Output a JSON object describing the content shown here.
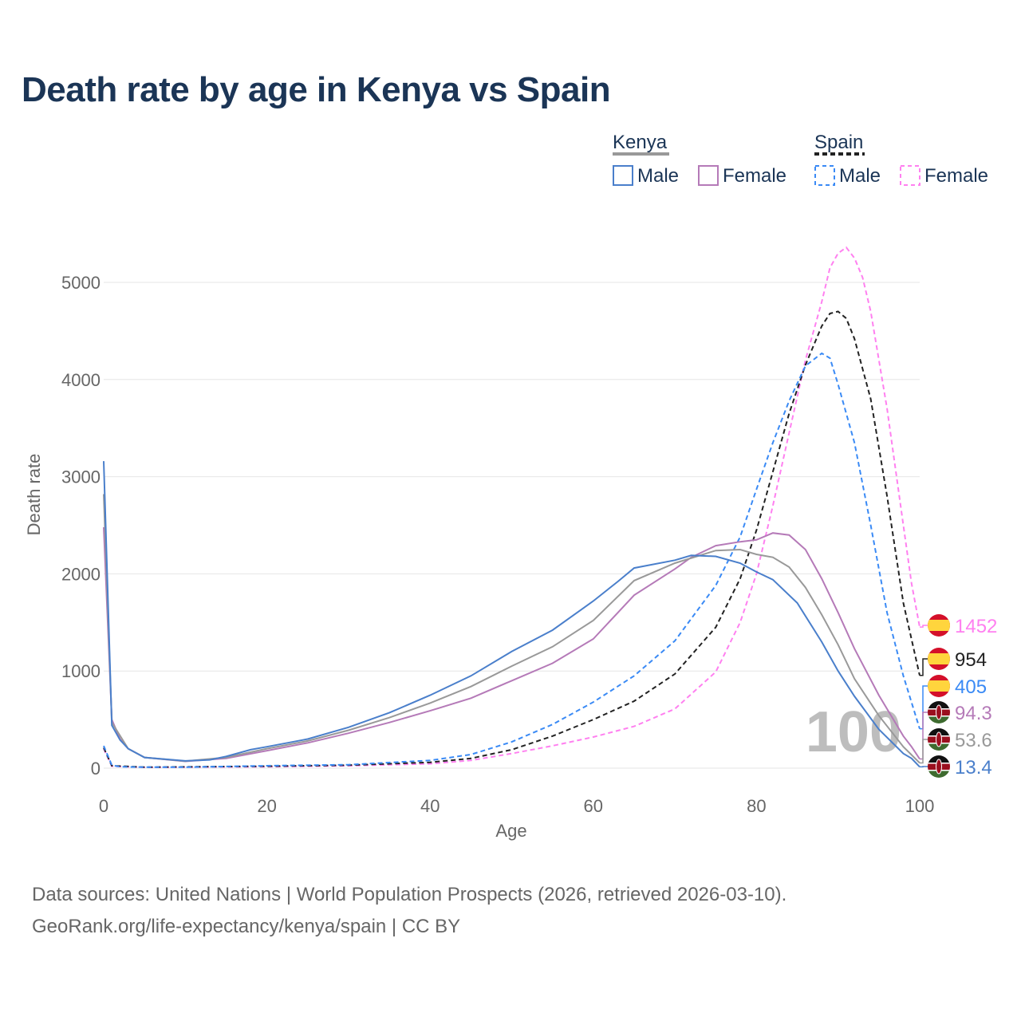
{
  "title": "Death rate by age in Kenya vs Spain",
  "legend": {
    "groups": [
      {
        "name": "Kenya",
        "items": [
          "Male",
          "Female"
        ]
      },
      {
        "name": "Spain",
        "items": [
          "Male",
          "Female"
        ]
      }
    ]
  },
  "watermark": "100",
  "source_line1": "Data sources: United Nations | World Population Prospects (2026, retrieved 2026-03-10).",
  "source_line2": "GeoRank.org/life-expectancy/kenya/spain | CC BY",
  "chart_data": {
    "type": "line",
    "title": "Death rate by age in Kenya vs Spain",
    "xlabel": "Age",
    "ylabel": "Death rate",
    "xlim": [
      0,
      100
    ],
    "ylim": [
      0,
      5000
    ],
    "xticks": [
      0,
      20,
      40,
      60,
      80,
      100
    ],
    "yticks": [
      0,
      1000,
      2000,
      3000,
      4000,
      5000
    ],
    "grid": true,
    "legend_position": "top-right",
    "series": [
      {
        "name": "Spain Female",
        "color": "#ff80f0",
        "dash": true,
        "end_label": "1452",
        "points": [
          [
            0,
            200
          ],
          [
            1,
            20
          ],
          [
            5,
            8
          ],
          [
            20,
            15
          ],
          [
            30,
            25
          ],
          [
            40,
            45
          ],
          [
            45,
            80
          ],
          [
            50,
            150
          ],
          [
            55,
            230
          ],
          [
            60,
            320
          ],
          [
            65,
            430
          ],
          [
            70,
            610
          ],
          [
            75,
            990
          ],
          [
            78,
            1500
          ],
          [
            80,
            2000
          ],
          [
            82,
            2700
          ],
          [
            84,
            3450
          ],
          [
            86,
            4200
          ],
          [
            88,
            4800
          ],
          [
            89,
            5150
          ],
          [
            90,
            5300
          ],
          [
            91,
            5360
          ],
          [
            92,
            5250
          ],
          [
            93,
            5050
          ],
          [
            94,
            4700
          ],
          [
            96,
            3700
          ],
          [
            98,
            2500
          ],
          [
            99,
            1900
          ],
          [
            100,
            1452
          ]
        ]
      },
      {
        "name": "Spain",
        "color": "#222222",
        "dash": true,
        "end_label": "954",
        "points": [
          [
            0,
            210
          ],
          [
            1,
            25
          ],
          [
            5,
            10
          ],
          [
            20,
            20
          ],
          [
            30,
            30
          ],
          [
            40,
            60
          ],
          [
            45,
            100
          ],
          [
            50,
            190
          ],
          [
            55,
            330
          ],
          [
            60,
            500
          ],
          [
            65,
            690
          ],
          [
            70,
            970
          ],
          [
            75,
            1450
          ],
          [
            78,
            1950
          ],
          [
            80,
            2450
          ],
          [
            82,
            3050
          ],
          [
            84,
            3650
          ],
          [
            86,
            4150
          ],
          [
            88,
            4550
          ],
          [
            89,
            4680
          ],
          [
            90,
            4700
          ],
          [
            91,
            4630
          ],
          [
            92,
            4420
          ],
          [
            94,
            3800
          ],
          [
            96,
            2800
          ],
          [
            98,
            1700
          ],
          [
            100,
            954
          ]
        ]
      },
      {
        "name": "Spain Male",
        "color": "#3a8af5",
        "dash": true,
        "end_label": "405",
        "points": [
          [
            0,
            230
          ],
          [
            1,
            30
          ],
          [
            2,
            15
          ],
          [
            5,
            10
          ],
          [
            10,
            10
          ],
          [
            20,
            25
          ],
          [
            30,
            35
          ],
          [
            40,
            80
          ],
          [
            45,
            140
          ],
          [
            50,
            270
          ],
          [
            55,
            450
          ],
          [
            60,
            680
          ],
          [
            65,
            950
          ],
          [
            70,
            1310
          ],
          [
            75,
            1880
          ],
          [
            78,
            2380
          ],
          [
            80,
            2870
          ],
          [
            82,
            3350
          ],
          [
            84,
            3780
          ],
          [
            86,
            4140
          ],
          [
            88,
            4270
          ],
          [
            89,
            4220
          ],
          [
            90,
            3950
          ],
          [
            92,
            3350
          ],
          [
            94,
            2500
          ],
          [
            96,
            1600
          ],
          [
            98,
            950
          ],
          [
            100,
            405
          ]
        ]
      },
      {
        "name": "Kenya Female",
        "color": "#b57ab8",
        "dash": false,
        "end_label": "94.3",
        "points": [
          [
            0,
            2480
          ],
          [
            1,
            500
          ],
          [
            2,
            300
          ],
          [
            3,
            200
          ],
          [
            5,
            110
          ],
          [
            10,
            70
          ],
          [
            15,
            100
          ],
          [
            20,
            180
          ],
          [
            25,
            260
          ],
          [
            30,
            360
          ],
          [
            35,
            470
          ],
          [
            40,
            590
          ],
          [
            45,
            720
          ],
          [
            50,
            900
          ],
          [
            55,
            1080
          ],
          [
            60,
            1330
          ],
          [
            65,
            1780
          ],
          [
            70,
            2050
          ],
          [
            72,
            2170
          ],
          [
            75,
            2290
          ],
          [
            78,
            2330
          ],
          [
            80,
            2350
          ],
          [
            82,
            2420
          ],
          [
            84,
            2400
          ],
          [
            86,
            2250
          ],
          [
            88,
            1950
          ],
          [
            90,
            1600
          ],
          [
            92,
            1230
          ],
          [
            95,
            750
          ],
          [
            98,
            330
          ],
          [
            99,
            220
          ],
          [
            100,
            94.3
          ]
        ]
      },
      {
        "name": "Kenya",
        "color": "#999999",
        "dash": false,
        "end_label": "53.6",
        "points": [
          [
            0,
            2820
          ],
          [
            1,
            470
          ],
          [
            3,
            200
          ],
          [
            5,
            110
          ],
          [
            10,
            72
          ],
          [
            15,
            110
          ],
          [
            20,
            200
          ],
          [
            25,
            280
          ],
          [
            30,
            390
          ],
          [
            35,
            520
          ],
          [
            40,
            670
          ],
          [
            45,
            840
          ],
          [
            50,
            1050
          ],
          [
            55,
            1250
          ],
          [
            60,
            1520
          ],
          [
            65,
            1930
          ],
          [
            70,
            2110
          ],
          [
            75,
            2240
          ],
          [
            78,
            2250
          ],
          [
            80,
            2200
          ],
          [
            82,
            2170
          ],
          [
            84,
            2070
          ],
          [
            86,
            1860
          ],
          [
            88,
            1580
          ],
          [
            90,
            1270
          ],
          [
            92,
            920
          ],
          [
            95,
            540
          ],
          [
            98,
            220
          ],
          [
            100,
            53.6
          ]
        ]
      },
      {
        "name": "Kenya Male",
        "color": "#4a7fcb",
        "dash": false,
        "end_label": "13.4",
        "points": [
          [
            0,
            3160
          ],
          [
            1,
            440
          ],
          [
            2,
            290
          ],
          [
            3,
            200
          ],
          [
            5,
            110
          ],
          [
            10,
            75
          ],
          [
            13,
            85
          ],
          [
            15,
            120
          ],
          [
            18,
            190
          ],
          [
            20,
            220
          ],
          [
            25,
            300
          ],
          [
            30,
            420
          ],
          [
            35,
            570
          ],
          [
            40,
            750
          ],
          [
            45,
            950
          ],
          [
            50,
            1200
          ],
          [
            55,
            1420
          ],
          [
            60,
            1720
          ],
          [
            63,
            1920
          ],
          [
            65,
            2060
          ],
          [
            70,
            2140
          ],
          [
            72,
            2190
          ],
          [
            75,
            2180
          ],
          [
            78,
            2110
          ],
          [
            80,
            2020
          ],
          [
            82,
            1940
          ],
          [
            85,
            1700
          ],
          [
            88,
            1300
          ],
          [
            90,
            1000
          ],
          [
            92,
            740
          ],
          [
            95,
            400
          ],
          [
            98,
            150
          ],
          [
            99,
            100
          ],
          [
            100,
            13.4
          ]
        ]
      }
    ]
  }
}
